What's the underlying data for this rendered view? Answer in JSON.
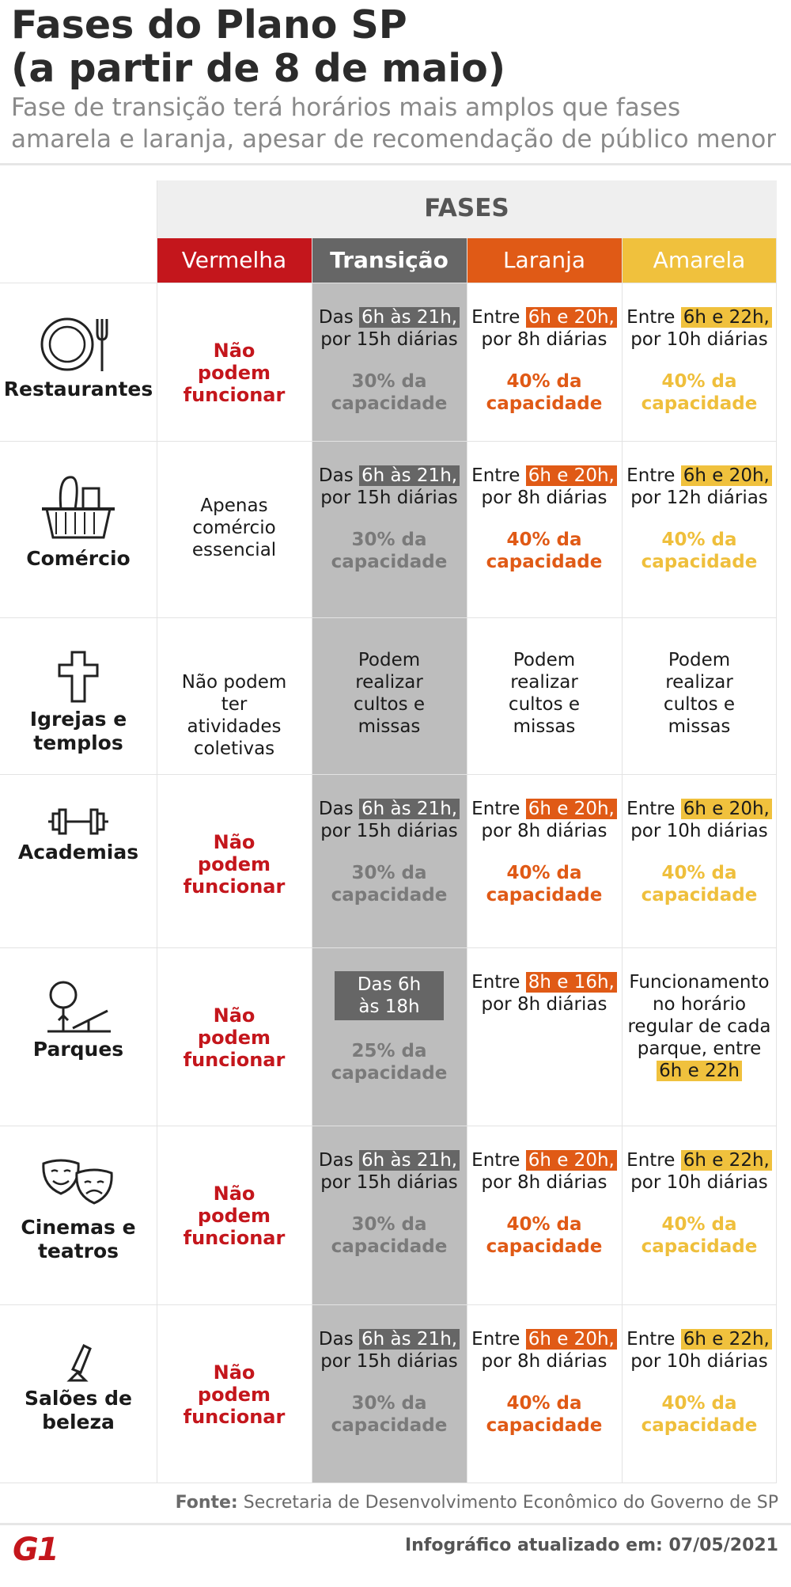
{
  "header": {
    "title_line1": "Fases do Plano SP",
    "title_line2": "(a partir de 8 de maio)",
    "subtitle_line1": "Fase de transição terá horários mais amplos que fases",
    "subtitle_line2": "amarela e laranja, apesar de recomendação de público menor"
  },
  "table": {
    "fases_label": "FASES",
    "phases": [
      "Vermelha",
      "Transição",
      "Laranja",
      "Amarela"
    ],
    "rows": [
      {
        "category": "Restaurantes",
        "icon": "plate-fork-icon",
        "vermelha": "Não podem funcionar",
        "transicao": {
          "pre": "Das",
          "hl": "6h às 21h,",
          "post": "por 15h diárias",
          "cap": "30% da capacidade"
        },
        "laranja": {
          "pre": "Entre",
          "hl": "6h e 20h,",
          "post": "por 8h diárias",
          "cap": "40% da capacidade"
        },
        "amarela": {
          "pre": "Entre",
          "hl": "6h e 22h,",
          "post": "por 10h diárias",
          "cap": "40% da capacidade"
        }
      },
      {
        "category": "Comércio",
        "icon": "shopping-basket-icon",
        "vermelha": "Apenas comércio essencial",
        "transicao": {
          "pre": "Das",
          "hl": "6h às 21h,",
          "post": "por 15h diárias",
          "cap": "30% da capacidade"
        },
        "laranja": {
          "pre": "Entre",
          "hl": "6h e 20h,",
          "post": "por 8h diárias",
          "cap": "40% da capacidade"
        },
        "amarela": {
          "pre": "Entre",
          "hl": "6h e 20h,",
          "post": "por 12h diárias",
          "cap": "40% da capacidade"
        }
      },
      {
        "category": "Igrejas e templos",
        "icon": "cross-icon",
        "vermelha": "Não podem ter atividades coletivas",
        "transicao_text": "Podem realizar cultos e missas",
        "laranja_text": "Podem realizar cultos e missas",
        "amarela_text": "Podem realizar cultos e missas"
      },
      {
        "category": "Academias",
        "icon": "dumbbell-icon",
        "vermelha": "Não podem funcionar",
        "transicao": {
          "pre": "Das",
          "hl": "6h às 21h,",
          "post": "por 15h diárias",
          "cap": "30% da capacidade"
        },
        "laranja": {
          "pre": "Entre",
          "hl": "6h e 20h,",
          "post": "por 8h diárias",
          "cap": "40% da capacidade"
        },
        "amarela": {
          "pre": "Entre",
          "hl": "6h e 20h,",
          "post": "por 10h diárias",
          "cap": "40% da capacidade"
        }
      },
      {
        "category": "Parques",
        "icon": "park-tree-icon",
        "vermelha": "Não podem funcionar",
        "transicao_box": "Das 6h às 18h",
        "transicao_cap": "25% da capacidade",
        "laranja": {
          "pre": "Entre",
          "hl": "8h e 16h,",
          "post": "por 8h diárias"
        },
        "amarela_text": "Funcionamento no horário regular de cada parque, entre",
        "amarela_hl": "6h e 22h"
      },
      {
        "category": "Cinemas e teatros",
        "icon": "theater-masks-icon",
        "vermelha": "Não podem funcionar",
        "transicao": {
          "pre": "Das",
          "hl": "6h às 21h,",
          "post": "por 15h diárias",
          "cap": "30% da capacidade"
        },
        "laranja": {
          "pre": "Entre",
          "hl": "6h e 20h,",
          "post": "por 8h diárias",
          "cap": "40% da capacidade"
        },
        "amarela": {
          "pre": "Entre",
          "hl": "6h e 22h,",
          "post": "por 10h diárias",
          "cap": "40% da capacidade"
        }
      },
      {
        "category": "Salões de beleza",
        "icon": "lipstick-icon",
        "vermelha": "Não podem funcionar",
        "transicao": {
          "pre": "Das",
          "hl": "6h às 21h,",
          "post": "por 15h diárias",
          "cap": "30% da capacidade"
        },
        "laranja": {
          "pre": "Entre",
          "hl": "6h e 20h,",
          "post": "por 8h diárias",
          "cap": "40% da capacidade"
        },
        "amarela": {
          "pre": "Entre",
          "hl": "6h e 22h,",
          "post": "por 10h diárias",
          "cap": "40% da capacidade"
        }
      }
    ]
  },
  "colors": {
    "vermelha": "#c4161c",
    "transicao": "#666666",
    "laranja": "#e05a16",
    "amarela": "#f0c13d"
  },
  "footer": {
    "source_label": "Fonte:",
    "source_text": "Secretaria de Desenvolvimento Econômico do Governo de SP",
    "updated": "Infográfico atualizado em: 07/05/2021",
    "logo": "G1"
  }
}
